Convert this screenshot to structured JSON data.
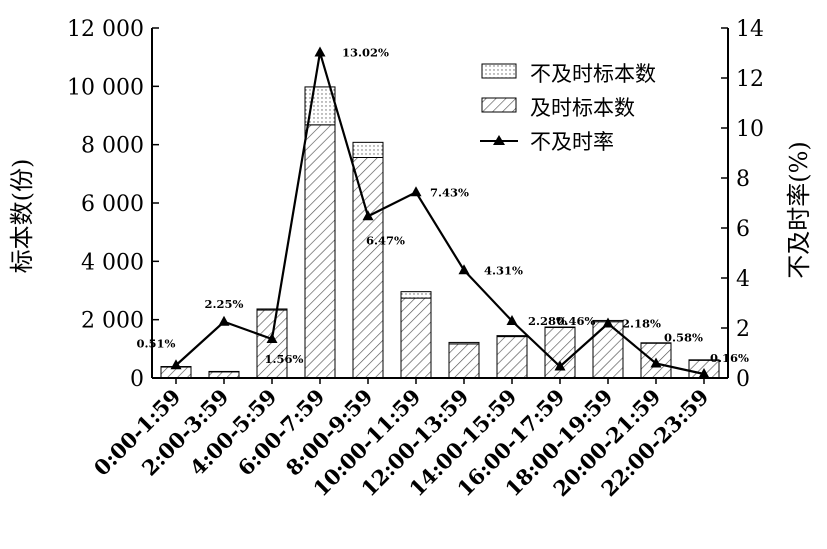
{
  "chart_data": {
    "type": "bar",
    "categories": [
      "0:00-1:59",
      "2:00-3:59",
      "4:00-5:59",
      "6:00-7:59",
      "8:00-9:59",
      "10:00-11:59",
      "12:00-13:59",
      "14:00-15:59",
      "16:00-17:59",
      "18:00-19:59",
      "20:00-21:59",
      "22:00-23:59"
    ],
    "series": [
      {
        "name": "不及时标本数",
        "kind": "bar-stack-top",
        "values": [
          2,
          5,
          37,
          1300,
          520,
          220,
          50,
          33,
          8,
          43,
          7,
          1
        ]
      },
      {
        "name": "及时标本数",
        "kind": "bar-stack-bottom",
        "values": [
          390,
          220,
          2330,
          8680,
          7560,
          2740,
          1170,
          1420,
          1740,
          1930,
          1200,
          620
        ]
      },
      {
        "name": "不及时率",
        "kind": "line",
        "axis": "right",
        "values": [
          0.51,
          2.25,
          1.56,
          13.02,
          6.47,
          7.43,
          4.31,
          2.28,
          0.46,
          2.18,
          0.58,
          0.16
        ],
        "labels": [
          "0.51%",
          "2.25%",
          "1.56%",
          "13.02%",
          "6.47%",
          "7.43%",
          "4.31%",
          "2.28%",
          "0.46%",
          "2.18%",
          "0.58%",
          "0.16%"
        ]
      }
    ],
    "ylabel": "标本数(份)",
    "y2label": "不及时率(%)",
    "ylim": [
      0,
      12000
    ],
    "y2lim": [
      0,
      14
    ],
    "yticks": [
      0,
      2000,
      4000,
      6000,
      8000,
      10000,
      12000
    ],
    "ytick_labels": [
      "0",
      "2 000",
      "4 000",
      "6 000",
      "8 000",
      "10 000",
      "12 000"
    ],
    "y2ticks": [
      0,
      2,
      4,
      6,
      8,
      10,
      12,
      14
    ],
    "y2tick_labels": [
      "0",
      "2",
      "4",
      "6",
      "8",
      "10",
      "12",
      "14"
    ],
    "grid": false,
    "legend_position": "top-right",
    "legend": [
      "不及时标本数",
      "及时标本数",
      "不及时率"
    ]
  }
}
